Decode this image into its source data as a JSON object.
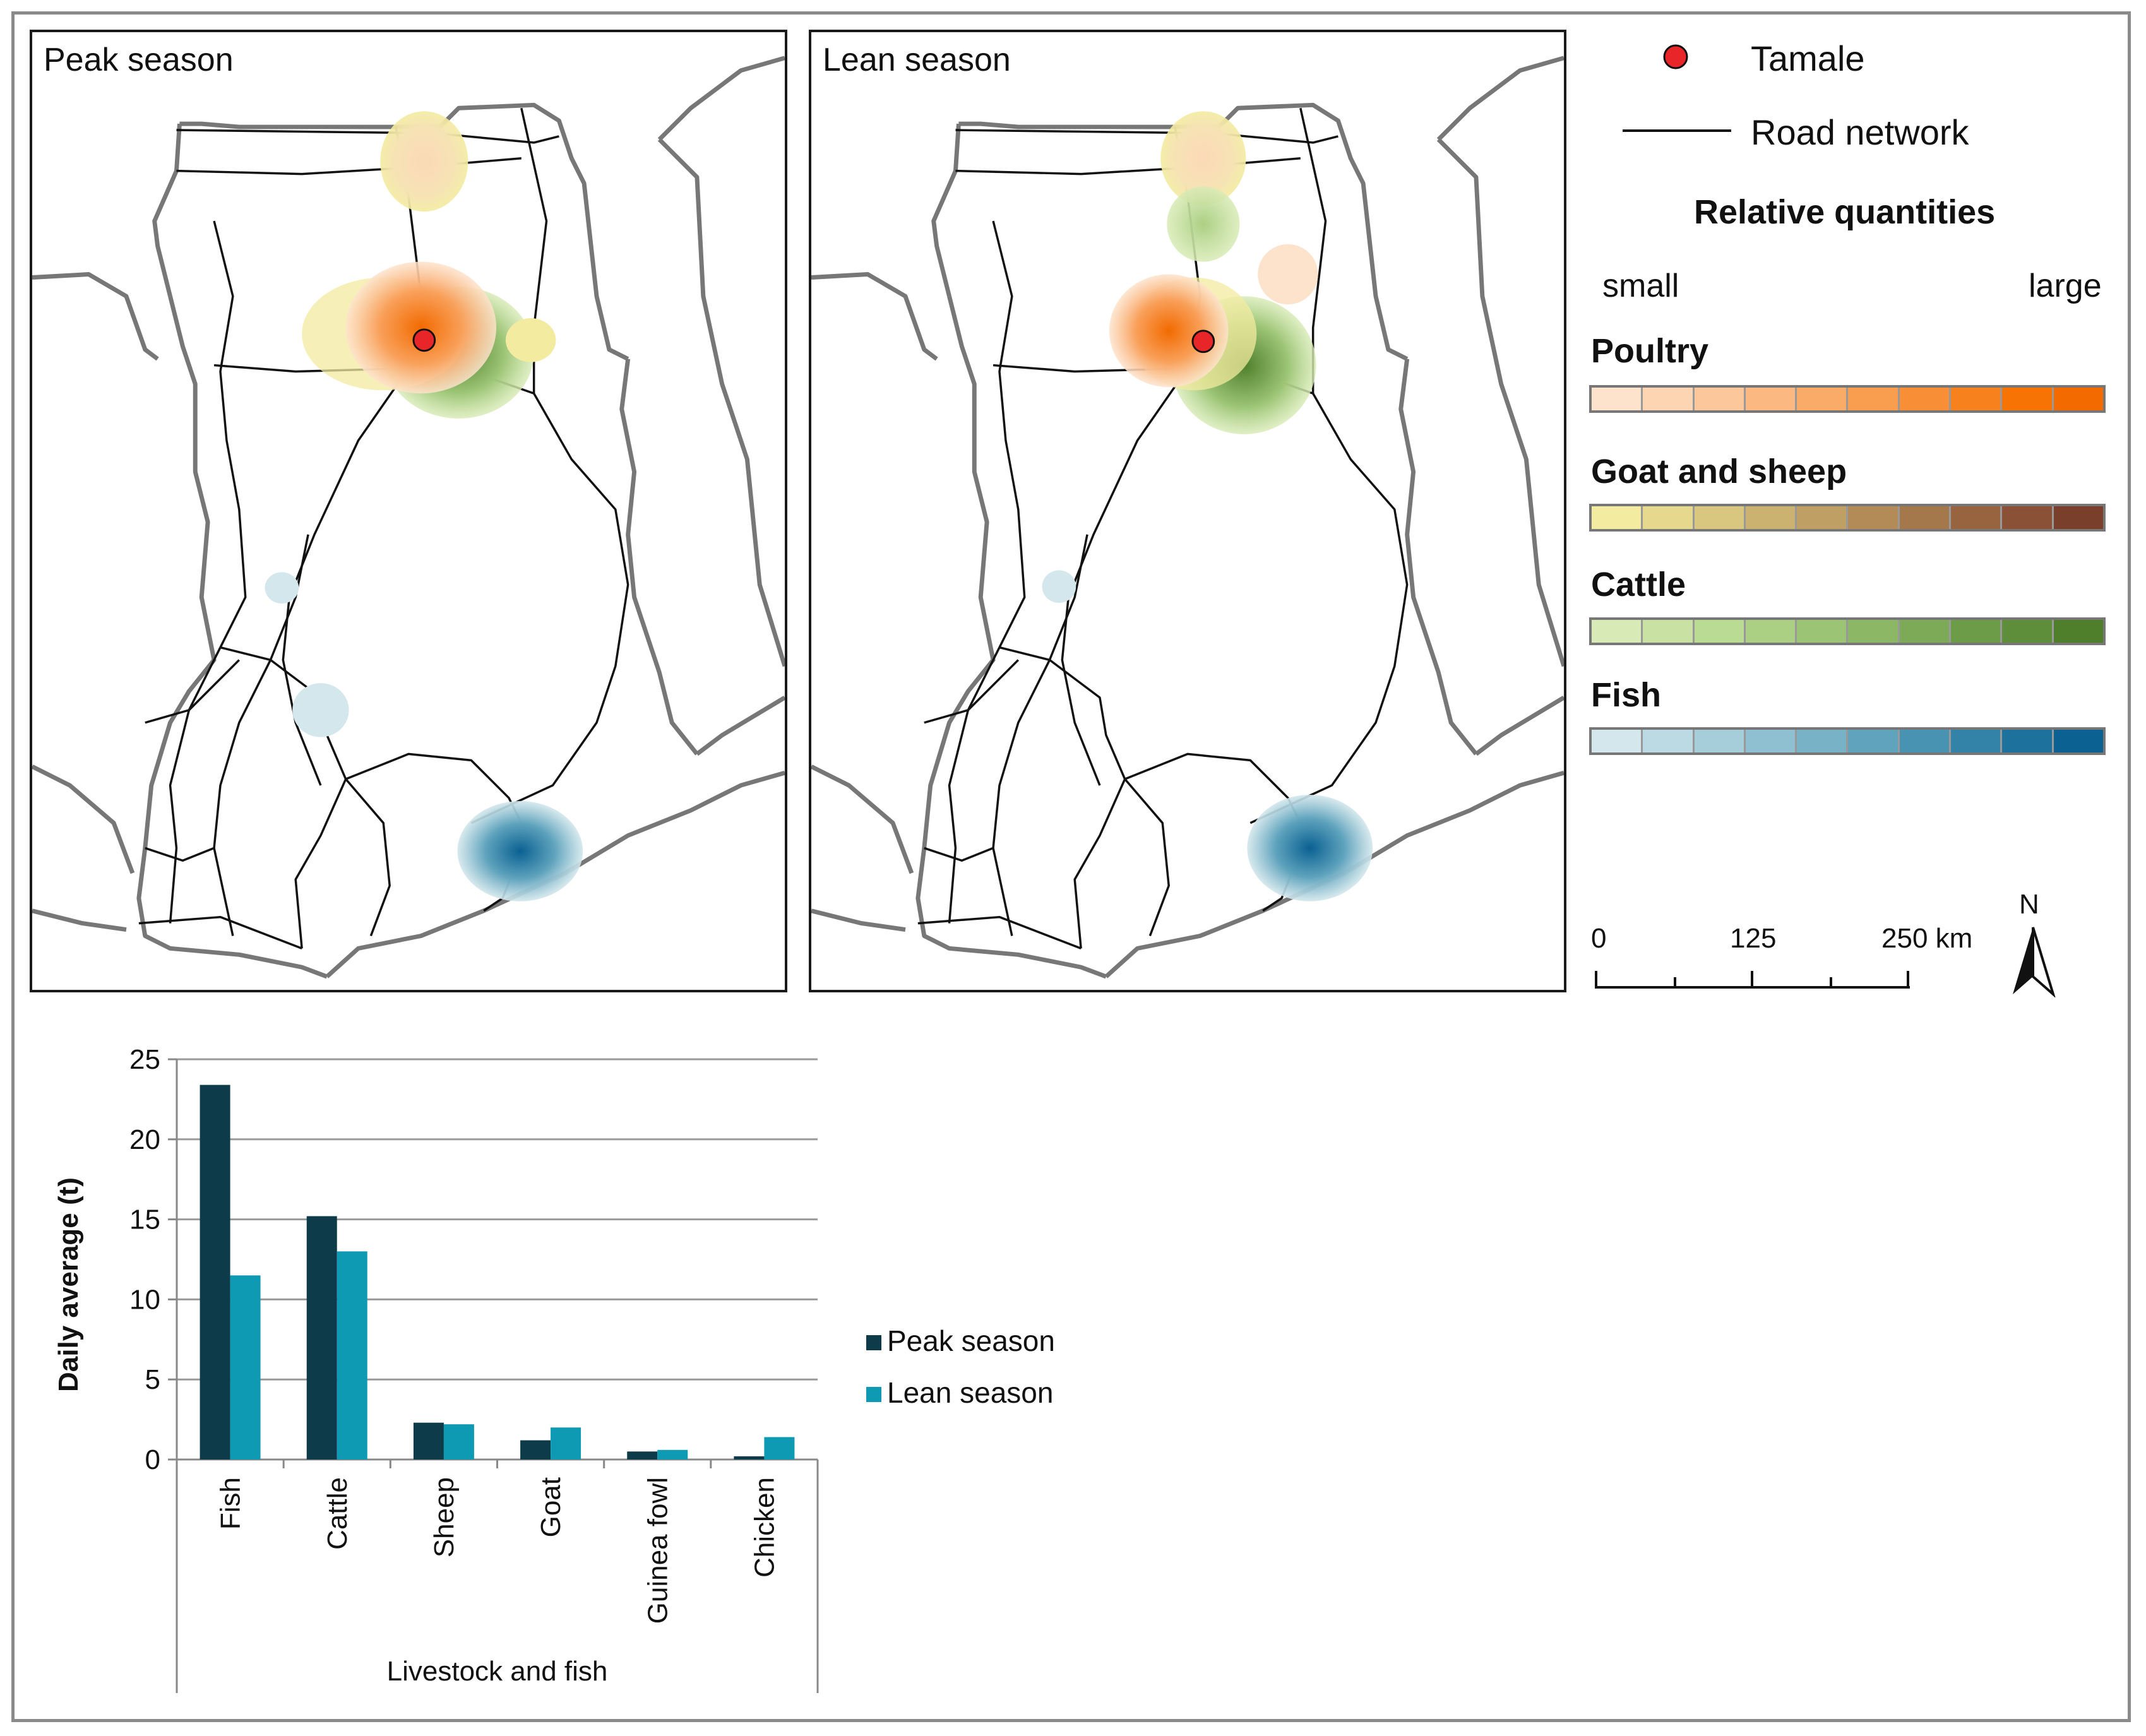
{
  "maps": {
    "peak_title": "Peak season",
    "lean_title": "Lean season"
  },
  "legend": {
    "city": "Tamale",
    "road": "Road network",
    "relative_title": "Relative quantities",
    "small": "small",
    "large": "large",
    "categories": [
      {
        "name": "Poultry",
        "colors": [
          "#fde3cc",
          "#fdd5b3",
          "#fcc79a",
          "#fbb981",
          "#faab68",
          "#f99d4f",
          "#f88f36",
          "#f7811d",
          "#f67304",
          "#f26a00"
        ]
      },
      {
        "name": "Goat and sheep",
        "colors": [
          "#f3eba0",
          "#e6d98e",
          "#d9c67f",
          "#ccb271",
          "#bf9f64",
          "#b28b57",
          "#a5784b",
          "#986440",
          "#8b5136",
          "#7a3f2a"
        ]
      },
      {
        "name": "Cattle",
        "colors": [
          "#d8ebb6",
          "#c9e2a4",
          "#badb93",
          "#abcf83",
          "#9bc474",
          "#8cb866",
          "#7caa57",
          "#6d9c48",
          "#5e8e3a",
          "#4f7f2b"
        ]
      },
      {
        "name": "Fish",
        "colors": [
          "#d3e7ec",
          "#bcdae3",
          "#a5cdda",
          "#8ec0d1",
          "#77b2c7",
          "#5fa3bd",
          "#4893b2",
          "#3383a8",
          "#1d729d",
          "#0a6192"
        ]
      }
    ]
  },
  "scale": {
    "ticks": [
      "0",
      "125",
      "250 km"
    ],
    "north": "N"
  },
  "chart_data": {
    "type": "bar",
    "title": "",
    "xlabel": "Livestock and fish",
    "ylabel": "Daily average (t)",
    "ylim": [
      0,
      25
    ],
    "yticks": [
      "0",
      "5",
      "10",
      "15",
      "20",
      "25"
    ],
    "grid": true,
    "legend_position": "right",
    "categories": [
      "Fish",
      "Cattle",
      "Sheep",
      "Goat",
      "Guinea fowl",
      "Chicken"
    ],
    "series": [
      {
        "name": "Peak season",
        "color": "#0d3b4a",
        "values": [
          23.4,
          15.2,
          2.3,
          1.2,
          0.5,
          0.2
        ]
      },
      {
        "name": "Lean season",
        "color": "#0f9ab3",
        "values": [
          11.5,
          13.0,
          2.2,
          2.0,
          0.6,
          1.4
        ]
      }
    ]
  }
}
